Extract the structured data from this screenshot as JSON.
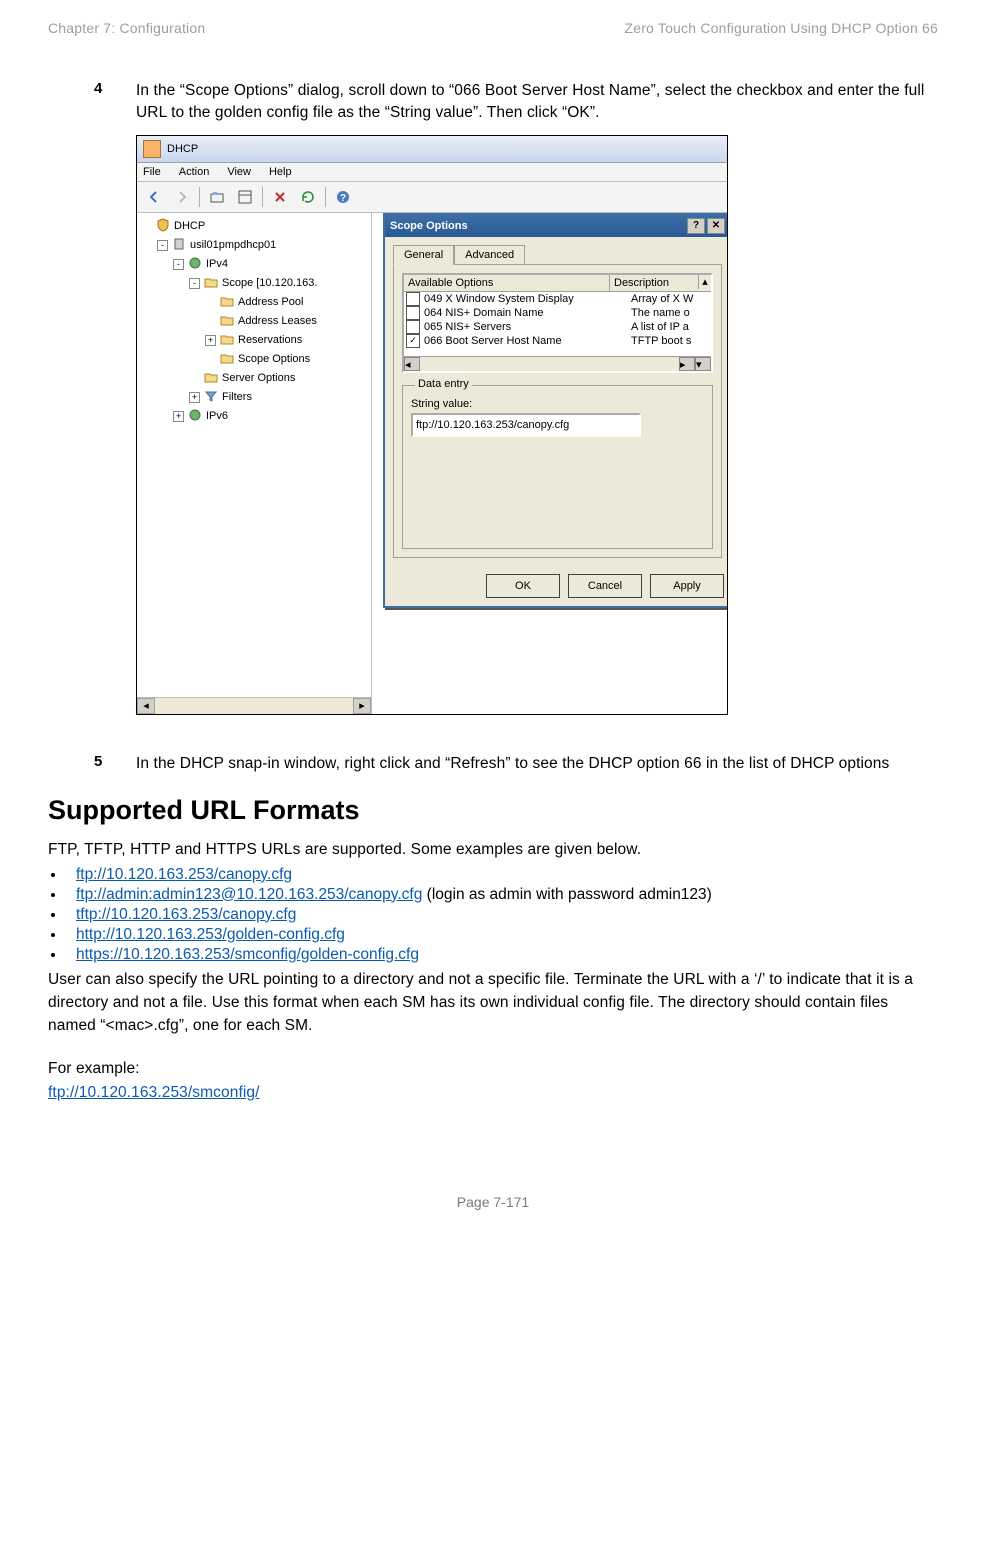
{
  "header": {
    "left": "Chapter 7:  Configuration",
    "right": "Zero Touch Configuration Using DHCP Option 66"
  },
  "step4": {
    "num": "4",
    "text": "In the “Scope Options” dialog, scroll down to “066 Boot Server Host Name”, select the checkbox and enter the full URL to the golden config file as the “String value”. Then click “OK”."
  },
  "shot": {
    "appTitle": "DHCP",
    "menus": [
      "File",
      "Action",
      "View",
      "Help"
    ],
    "tree": [
      {
        "indent": 0,
        "icon": "shield",
        "label": "DHCP"
      },
      {
        "indent": 1,
        "icon": "server",
        "label": "usil01pmpdhcp01",
        "expander": "-"
      },
      {
        "indent": 2,
        "icon": "ipv4",
        "label": "IPv4",
        "expander": "-"
      },
      {
        "indent": 3,
        "icon": "folder",
        "label": "Scope [10.120.163.",
        "expander": "-"
      },
      {
        "indent": 4,
        "icon": "folder",
        "label": "Address Pool"
      },
      {
        "indent": 4,
        "icon": "folder",
        "label": "Address Leases"
      },
      {
        "indent": 4,
        "icon": "folder",
        "label": "Reservations",
        "expander": "+"
      },
      {
        "indent": 4,
        "icon": "folder",
        "label": "Scope Options"
      },
      {
        "indent": 3,
        "icon": "folder",
        "label": "Server Options"
      },
      {
        "indent": 3,
        "icon": "filter",
        "label": "Filters",
        "expander": "+"
      },
      {
        "indent": 2,
        "icon": "ipv6",
        "label": "IPv6",
        "expander": "+"
      }
    ],
    "dialog": {
      "title": "Scope Options",
      "tabs": {
        "active": "General",
        "other": "Advanced"
      },
      "header": {
        "col1": "Available Options",
        "col2": "Description"
      },
      "rows": [
        {
          "checked": false,
          "name": "049 X Window System Display",
          "desc": "Array of X W"
        },
        {
          "checked": false,
          "name": "064 NIS+ Domain Name",
          "desc": "The name o"
        },
        {
          "checked": false,
          "name": "065 NIS+ Servers",
          "desc": "A list of IP a"
        },
        {
          "checked": true,
          "name": "066 Boot Server Host Name",
          "desc": "TFTP boot s"
        }
      ],
      "fieldsetLegend": "Data entry",
      "stringLabel": "String value:",
      "stringValue": "ftp://10.120.163.253/canopy.cfg",
      "buttons": [
        "OK",
        "Cancel",
        "Apply"
      ]
    }
  },
  "step5": {
    "num": "5",
    "text": "In the DHCP snap-in window, right click and “Refresh” to see the DHCP option 66 in the list of DHCP options"
  },
  "h2": "Supported URL Formats",
  "para1": "FTP, TFTP, HTTP and HTTPS URLs are supported. Some examples are given below.",
  "urls": [
    {
      "text": "ftp://10.120.163.253/canopy.cfg",
      "suffix": ""
    },
    {
      "text": "ftp://admin:admin123@10.120.163.253/canopy.cfg",
      "suffix": "  (login as admin with password admin123)"
    },
    {
      "text": "tftp://10.120.163.253/canopy.cfg",
      "suffix": ""
    },
    {
      "text": "http://10.120.163.253/golden-config.cfg",
      "suffix": ""
    },
    {
      "text": "https://10.120.163.253/smconfig/golden-config.cfg",
      "suffix": ""
    }
  ],
  "para2": "User can also specify the URL pointing to a directory and not a specific file. Terminate the URL with a ‘/’ to indicate that it is a directory and not a file. Use this format when each SM has its own individual config file. The directory should contain files named “<mac>.cfg”, one for each SM.",
  "exampleLabel": "For example:",
  "exampleUrl": "ftp://10.120.163.253/smconfig/",
  "footer": "Page 7-171",
  "colors": {
    "link": "#0b5ab0",
    "headerGray": "#9e9e9e",
    "dialogBlue": "#3a6ea5"
  }
}
